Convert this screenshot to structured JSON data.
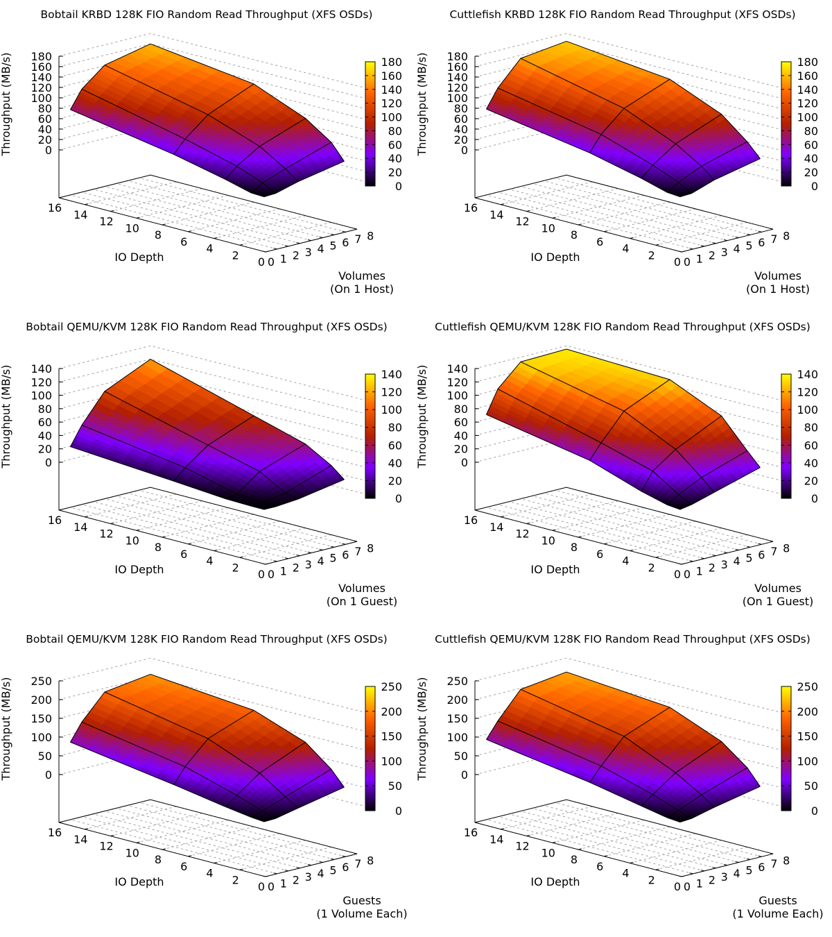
{
  "figure": {
    "palette": [
      "#000000",
      "#8000ff",
      "#b32000",
      "#ff6600",
      "#ffff00"
    ],
    "surface_grid_color": "#000000",
    "wall_grid_color": "#a0a0a0"
  },
  "chart_data": [
    {
      "type": "surface3d",
      "title": "Bobtail KRBD 128K FIO Random Read Throughput (XFS OSDs)",
      "zlabel": "Throughput (MB/s)",
      "xlabel": "IO Depth",
      "ylabel_lines": [
        "Volumes",
        "(On 1 Host)"
      ],
      "x_ticks": [
        "0",
        "2",
        "4",
        "6",
        "8",
        "10",
        "12",
        "14",
        "16"
      ],
      "y_ticks": [
        "0",
        "1",
        "2",
        "3",
        "4",
        "5",
        "6",
        "7",
        "8"
      ],
      "z_ticks": [
        "0",
        "20",
        "40",
        "60",
        "80",
        "100",
        "120",
        "140",
        "160",
        "180"
      ],
      "cb_ticks": [
        "0",
        "20",
        "40",
        "60",
        "80",
        "100",
        "120",
        "140",
        "160",
        "180"
      ],
      "xlim": [
        0,
        16
      ],
      "ylim": [
        0,
        8
      ],
      "zlim": [
        0,
        180
      ],
      "io_depths": [
        1,
        2,
        4,
        8,
        16
      ],
      "volumes": [
        1,
        2,
        4,
        8
      ],
      "z": [
        [
          2,
          3,
          16,
          38,
          72
        ],
        [
          3,
          17,
          36,
          62,
          106
        ],
        [
          15,
          33,
          63,
          98,
          141
        ],
        [
          32,
          62,
          95,
          135,
          160
        ]
      ]
    },
    {
      "type": "surface3d",
      "title": "Cuttlefish KRBD 128K FIO Random Read Throughput (XFS OSDs)",
      "zlabel": "Throughput (MB/s)",
      "xlabel": "IO Depth",
      "ylabel_lines": [
        "Volumes",
        "(On 1 Host)"
      ],
      "x_ticks": [
        "0",
        "2",
        "4",
        "6",
        "8",
        "10",
        "12",
        "14",
        "16"
      ],
      "y_ticks": [
        "0",
        "1",
        "2",
        "3",
        "4",
        "5",
        "6",
        "7",
        "8"
      ],
      "z_ticks": [
        "0",
        "20",
        "40",
        "60",
        "80",
        "100",
        "120",
        "140",
        "160",
        "180"
      ],
      "cb_ticks": [
        "0",
        "20",
        "40",
        "60",
        "80",
        "100",
        "120",
        "140",
        "160",
        "180"
      ],
      "xlim": [
        0,
        16
      ],
      "ylim": [
        0,
        8
      ],
      "zlim": [
        0,
        180
      ],
      "io_depths": [
        1,
        2,
        4,
        8,
        16
      ],
      "volumes": [
        1,
        2,
        4,
        8
      ],
      "z": [
        [
          2,
          4,
          18,
          41,
          73
        ],
        [
          3,
          18,
          38,
          71,
          108
        ],
        [
          18,
          38,
          68,
          110,
          154
        ],
        [
          37,
          63,
          103,
          144,
          165
        ]
      ]
    },
    {
      "type": "surface3d",
      "title": "Bobtail QEMU/KVM 128K FIO Random Read Throughput (XFS OSDs)",
      "zlabel": "Throughput (MB/s)",
      "xlabel": "IO Depth",
      "ylabel_lines": [
        "Volumes",
        "(On 1 Guest)"
      ],
      "x_ticks": [
        "0",
        "2",
        "4",
        "6",
        "8",
        "10",
        "12",
        "14",
        "16"
      ],
      "y_ticks": [
        "0",
        "1",
        "2",
        "3",
        "4",
        "5",
        "6",
        "7",
        "8"
      ],
      "z_ticks": [
        "0",
        "20",
        "40",
        "60",
        "80",
        "100",
        "120",
        "140"
      ],
      "cb_ticks": [
        "0",
        "20",
        "40",
        "60",
        "80",
        "100",
        "120",
        "140"
      ],
      "xlim": [
        0,
        16
      ],
      "ylim": [
        0,
        8
      ],
      "zlim": [
        0,
        140
      ],
      "io_depths": [
        1,
        2,
        4,
        8,
        16
      ],
      "volumes": [
        1,
        2,
        4,
        8
      ],
      "z": [
        [
          1,
          1,
          2,
          8,
          19
        ],
        [
          1,
          3,
          5,
          24,
          47
        ],
        [
          4,
          8,
          30,
          49,
          89
        ],
        [
          16,
          32,
          54,
          76,
          120
        ]
      ]
    },
    {
      "type": "surface3d",
      "title": "Cuttlefish QEMU/KVM 128K FIO Random Read Throughput (XFS OSDs)",
      "zlabel": "Throughput (MB/s)",
      "xlabel": "IO Depth",
      "ylabel_lines": [
        "Volumes",
        "(On 1 Guest)"
      ],
      "x_ticks": [
        "0",
        "2",
        "4",
        "6",
        "8",
        "10",
        "12",
        "14",
        "16"
      ],
      "y_ticks": [
        "0",
        "1",
        "2",
        "3",
        "4",
        "5",
        "6",
        "7",
        "8"
      ],
      "z_ticks": [
        "0",
        "20",
        "40",
        "60",
        "80",
        "100",
        "120",
        "140"
      ],
      "cb_ticks": [
        "0",
        "20",
        "40",
        "60",
        "80",
        "100",
        "120",
        "140"
      ],
      "xlim": [
        0,
        16
      ],
      "ylim": [
        0,
        8
      ],
      "zlim": [
        0,
        140
      ],
      "io_depths": [
        1,
        2,
        4,
        8,
        16
      ],
      "volumes": [
        1,
        2,
        4,
        8
      ],
      "z": [
        [
          1,
          3,
          13,
          39,
          67
        ],
        [
          4,
          14,
          39,
          61,
          101
        ],
        [
          14,
          31,
          63,
          100,
          133
        ],
        [
          34,
          54,
          96,
          130,
          135
        ]
      ]
    },
    {
      "type": "surface3d",
      "title": "Bobtail QEMU/KVM 128K FIO Random Read Throughput (XFS OSDs)",
      "zlabel": "Throughput (MB/s)",
      "xlabel": "IO Depth",
      "ylabel_lines": [
        "Guests",
        "(1 Volume Each)"
      ],
      "x_ticks": [
        "0",
        "2",
        "4",
        "6",
        "8",
        "10",
        "12",
        "14",
        "16"
      ],
      "y_ticks": [
        "0",
        "1",
        "2",
        "3",
        "4",
        "5",
        "6",
        "7",
        "8"
      ],
      "z_ticks": [
        "0",
        "50",
        "100",
        "150",
        "200",
        "250"
      ],
      "cb_ticks": [
        "0",
        "50",
        "100",
        "150",
        "200",
        "250"
      ],
      "xlim": [
        0,
        16
      ],
      "ylim": [
        0,
        8
      ],
      "zlim": [
        0,
        250
      ],
      "io_depths": [
        1,
        2,
        4,
        8,
        16
      ],
      "volumes": [
        1,
        2,
        4,
        8
      ],
      "z": [
        [
          2,
          5,
          15,
          38,
          79
        ],
        [
          3,
          14,
          38,
          78,
          125
        ],
        [
          16,
          37,
          82,
          138,
          190
        ],
        [
          41,
          80,
          134,
          183,
          207
        ]
      ]
    },
    {
      "type": "surface3d",
      "title": "Cuttlefish QEMU/KVM 128K FIO Random Read Throughput (XFS OSDs)",
      "zlabel": "Throughput (MB/s)",
      "xlabel": "IO Depth",
      "ylabel_lines": [
        "Guests",
        "(1 Volume Each)"
      ],
      "x_ticks": [
        "0",
        "2",
        "4",
        "6",
        "8",
        "10",
        "12",
        "14",
        "16"
      ],
      "y_ticks": [
        "0",
        "1",
        "2",
        "3",
        "4",
        "5",
        "6",
        "7",
        "8"
      ],
      "z_ticks": [
        "0",
        "50",
        "100",
        "150",
        "200",
        "250"
      ],
      "cb_ticks": [
        "0",
        "50",
        "100",
        "150",
        "200",
        "250"
      ],
      "xlim": [
        0,
        16
      ],
      "ylim": [
        0,
        8
      ],
      "zlim": [
        0,
        250
      ],
      "io_depths": [
        1,
        2,
        4,
        8,
        16
      ],
      "volumes": [
        1,
        2,
        4,
        8
      ],
      "z": [
        [
          1,
          4,
          17,
          44,
          86
        ],
        [
          3,
          16,
          40,
          80,
          128
        ],
        [
          18,
          42,
          83,
          144,
          197
        ],
        [
          43,
          84,
          136,
          191,
          213
        ]
      ]
    }
  ]
}
